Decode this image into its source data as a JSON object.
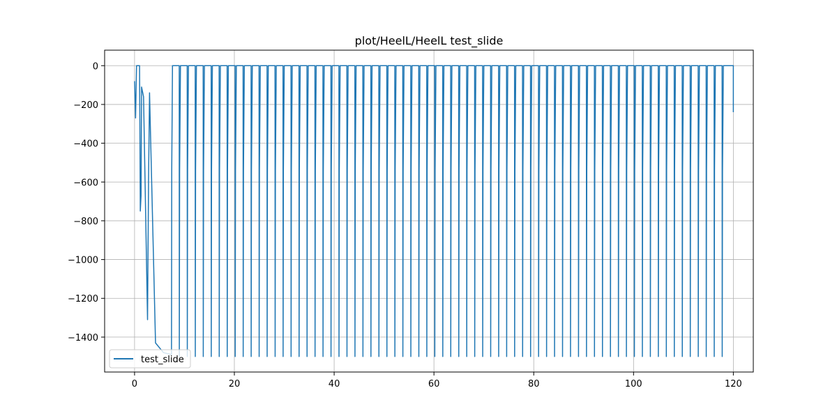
{
  "chart_data": {
    "type": "line",
    "title": "plot/HeelL/HeelL test_slide",
    "xlabel": "",
    "ylabel": "",
    "xlim": [
      -6,
      124
    ],
    "ylim": [
      -1580,
      80
    ],
    "xticks": [
      0,
      20,
      40,
      60,
      80,
      100,
      120
    ],
    "yticks": [
      0,
      -200,
      -400,
      -600,
      -800,
      -1000,
      -1200,
      -1400
    ],
    "grid": true,
    "legend": {
      "position": "lower-left",
      "entries": [
        "test_slide"
      ]
    },
    "colors": {
      "series": "#1f77b4",
      "grid": "#b0b0b0"
    },
    "series": [
      {
        "name": "test_slide",
        "period": 1.6,
        "x_range": [
          0,
          120
        ],
        "baseline": 0,
        "plateau_value": -540,
        "trough_value": -1500,
        "startup_transient": [
          {
            "x": 0.0,
            "y": -80
          },
          {
            "x": 0.2,
            "y": -270
          },
          {
            "x": 0.4,
            "y": 0
          },
          {
            "x": 1.0,
            "y": 0
          },
          {
            "x": 1.15,
            "y": -750
          },
          {
            "x": 1.3,
            "y": -670
          },
          {
            "x": 1.4,
            "y": -110
          },
          {
            "x": 1.8,
            "y": -160
          },
          {
            "x": 2.6,
            "y": -1310
          },
          {
            "x": 2.8,
            "y": -600
          },
          {
            "x": 3.0,
            "y": -140
          },
          {
            "x": 4.2,
            "y": -1430
          },
          {
            "x": 5.8,
            "y": -1480
          },
          {
            "x": 7.4,
            "y": -1490
          }
        ],
        "end_value": {
          "x": 120,
          "y": -240
        }
      }
    ]
  }
}
